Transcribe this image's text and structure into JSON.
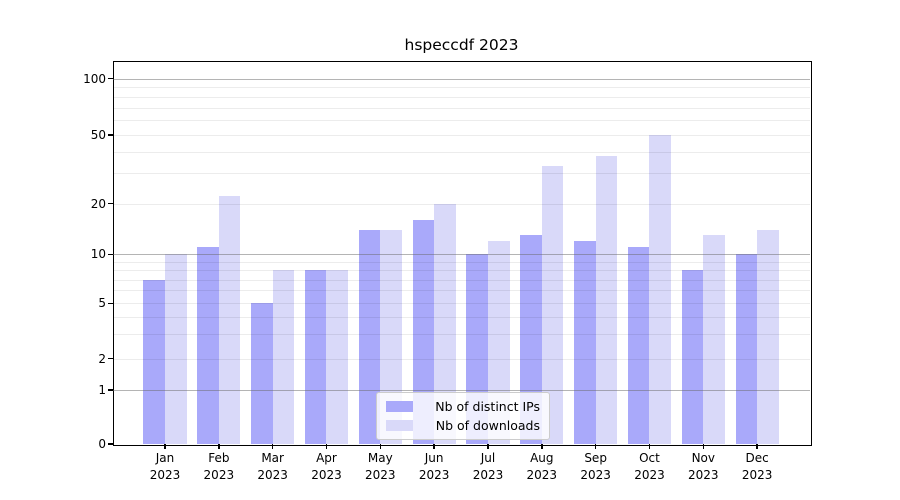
{
  "title": "hspeccdf 2023",
  "chart_data": {
    "type": "bar",
    "title": "hspeccdf 2023",
    "categories": [
      "Jan",
      "Feb",
      "Mar",
      "Apr",
      "May",
      "Jun",
      "Jul",
      "Aug",
      "Sep",
      "Oct",
      "Nov",
      "Dec"
    ],
    "category_year": "2023",
    "series": [
      {
        "name": "Nb of distinct IPs",
        "color": "#a9a9fa",
        "values": [
          7,
          11,
          5,
          8,
          14,
          16,
          10,
          13,
          12,
          11,
          8,
          10
        ]
      },
      {
        "name": "Nb of downloads",
        "color": "#d9d9f9",
        "values": [
          10,
          22,
          8,
          8,
          14,
          20,
          12,
          33,
          38,
          50,
          13,
          14
        ]
      }
    ],
    "xlabel": "",
    "ylabel": "",
    "yscale": "symlog",
    "y_ticks": [
      0,
      1,
      2,
      5,
      10,
      20,
      50,
      100
    ],
    "ylim": [
      0,
      110
    ],
    "grid": "on",
    "legend_position": "lower center"
  }
}
